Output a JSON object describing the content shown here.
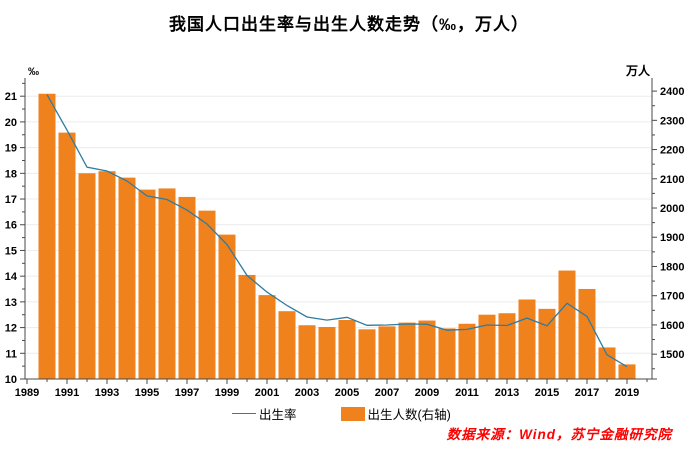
{
  "title": "我国人口出生率与出生人数走势（‰，万人）",
  "source_note": "数据来源：Wind，苏宁金融研究院",
  "legend": {
    "line_label": "出生率",
    "bar_label": "出生人数(右轴)"
  },
  "colors": {
    "bar": "#f0821e",
    "line": "#2e7ca0",
    "grid": "#ececec",
    "axis": "#4a4a4a",
    "tick_text": "#000000",
    "source_text": "#fe0000"
  },
  "chart_data": {
    "type": "combo",
    "x": [
      1990,
      1991,
      1992,
      1993,
      1994,
      1995,
      1996,
      1997,
      1998,
      1999,
      2000,
      2001,
      2002,
      2003,
      2004,
      2005,
      2006,
      2007,
      2008,
      2009,
      2010,
      2011,
      2012,
      2013,
      2014,
      2015,
      2016,
      2017,
      2018,
      2019
    ],
    "series": [
      {
        "name": "出生率",
        "type": "line",
        "axis": "left",
        "unit": "‰",
        "values": [
          21.06,
          19.68,
          18.24,
          18.09,
          17.7,
          17.12,
          16.98,
          16.57,
          16.03,
          15.23,
          14.03,
          13.38,
          12.86,
          12.41,
          12.29,
          12.4,
          12.09,
          12.1,
          12.14,
          12.13,
          11.9,
          11.93,
          12.1,
          12.08,
          12.37,
          12.07,
          12.95,
          12.43,
          10.94,
          10.48
        ]
      },
      {
        "name": "出生人数(右轴)",
        "type": "bar",
        "axis": "right",
        "unit": "万人",
        "values": [
          2391,
          2258,
          2119,
          2126,
          2104,
          2063,
          2067,
          2038,
          1991,
          1909,
          1771,
          1702,
          1647,
          1599,
          1593,
          1617,
          1585,
          1595,
          1608,
          1615,
          1588,
          1604,
          1635,
          1640,
          1687,
          1655,
          1786,
          1723,
          1523,
          1465
        ]
      }
    ],
    "left_axis": {
      "label": "‰",
      "ticks": [
        10,
        11,
        12,
        13,
        14,
        15,
        16,
        17,
        18,
        19,
        20,
        21
      ],
      "minor_step": 0.5,
      "range": [
        10,
        21.63
      ]
    },
    "right_axis": {
      "label": "万人",
      "ticks": [
        1500,
        1600,
        1700,
        1800,
        1900,
        2000,
        2100,
        2200,
        2300,
        2400
      ],
      "minor_step": 50,
      "range": [
        1415,
        2438
      ]
    },
    "x_axis": {
      "tick_labels": [
        "1989",
        "1991",
        "1993",
        "1995",
        "1997",
        "1999",
        "2001",
        "2003",
        "2005",
        "2007",
        "2009",
        "2011",
        "2013",
        "2015",
        "2017",
        "2019"
      ],
      "minor_step": 1,
      "range": [
        1988.9,
        2020.25
      ]
    },
    "grid": "horizontal gridlines at each left-axis integer",
    "legend_position": "bottom center"
  }
}
